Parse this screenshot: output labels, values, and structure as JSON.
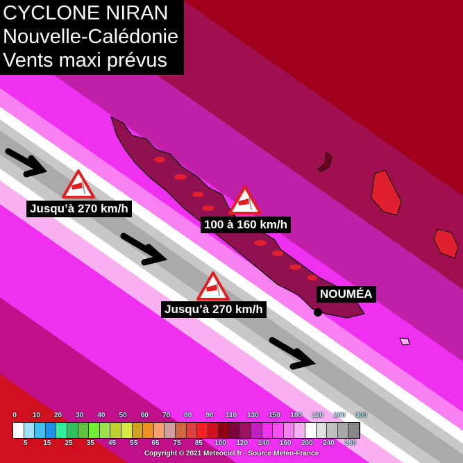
{
  "title": {
    "line1": "CYCLONE NIRAN",
    "line2": "Nouvelle-Calédonie",
    "line3": "Vents maxi prévus"
  },
  "labels": {
    "west_upper": "Jusqu’à 270 km/h",
    "island": "100 à 160 km/h",
    "west_lower": "Jusqu’à 270 km/h",
    "city": "NOUMÉA"
  },
  "icons": {
    "warning": "windsock-warning-icon",
    "arrow": "wind-direction-arrow-icon",
    "city": "city-dot-icon"
  },
  "legend": {
    "unit": "km/h",
    "top_ticks": [
      "0",
      "10",
      "20",
      "30",
      "40",
      "50",
      "60",
      "70",
      "80",
      "90",
      "110",
      "130",
      "150",
      "180",
      "220",
      "260",
      "300"
    ],
    "bottom_ticks": [
      "5",
      "15",
      "25",
      "35",
      "45",
      "55",
      "65",
      "75",
      "85",
      "100",
      "120",
      "140",
      "160",
      "200",
      "240",
      "280"
    ],
    "colors": [
      "#ffffff",
      "#a0e0f8",
      "#40c0f0",
      "#2090e8",
      "#30f0a0",
      "#30c060",
      "#60c040",
      "#70f030",
      "#a0e050",
      "#c0d030",
      "#d8e840",
      "#d0a020",
      "#f09020",
      "#f8a070",
      "#d0a0a0",
      "#d06840",
      "#e04040",
      "#f82020",
      "#d01020",
      "#900010",
      "#800040",
      "#a01060",
      "#c020c0",
      "#f030f0",
      "#f850f0",
      "#f880f0",
      "#f8b0f0",
      "#ffffff",
      "#e0e0e0",
      "#c0c0c0",
      "#a8a8a8",
      "#888888"
    ]
  },
  "copyright": "Copyright © 2021 Meteociel.fr - Source Meteo-France"
}
